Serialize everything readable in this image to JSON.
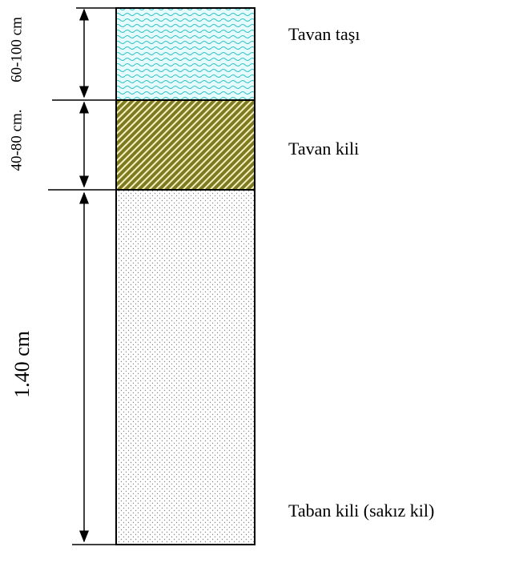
{
  "layers": [
    {
      "label": "Tavan taşı",
      "thickness": "60-100 cm"
    },
    {
      "label": "Tavan kili",
      "thickness": "40-80 cm."
    },
    {
      "label": "Taban kili (sakız kil)",
      "thickness": "1.40 cm"
    }
  ]
}
